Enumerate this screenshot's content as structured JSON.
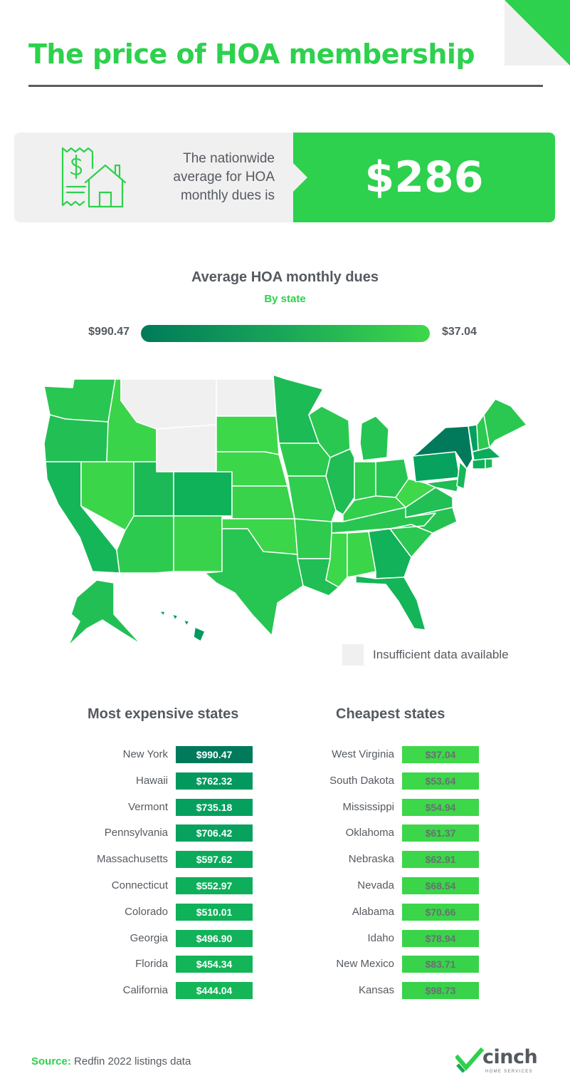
{
  "title": "The price of HOA membership",
  "headline": {
    "text": "The nationwide average for HOA monthly dues is",
    "value": "$286"
  },
  "map": {
    "title": "Average HOA monthly dues",
    "subtitle": "By state",
    "legend_max": "$990.47",
    "legend_min": "$37.04",
    "insufficient_label": "Insufficient data available"
  },
  "colors": {
    "brand_green": "#2dd14d",
    "dark_green": "#007a5a",
    "text_gray": "#555a60",
    "no_data": "#f0f0f0"
  },
  "expensive": {
    "title": "Most expensive states",
    "items": [
      {
        "state": "New York",
        "value": "$990.47",
        "color": "#007a5a"
      },
      {
        "state": "Hawaii",
        "value": "$762.32",
        "color": "#03995e"
      },
      {
        "state": "Vermont",
        "value": "$735.18",
        "color": "#05a05e"
      },
      {
        "state": "Pennsylvania",
        "value": "$706.42",
        "color": "#06a25e"
      },
      {
        "state": "Massachusetts",
        "value": "$597.62",
        "color": "#0bab5b"
      },
      {
        "state": "Connecticut",
        "value": "$552.97",
        "color": "#0eaf5a"
      },
      {
        "state": "Colorado",
        "value": "$510.01",
        "color": "#0fb159"
      },
      {
        "state": "Georgia",
        "value": "$496.90",
        "color": "#11b259"
      },
      {
        "state": "Florida",
        "value": "$454.34",
        "color": "#14b558"
      },
      {
        "state": "California",
        "value": "$444.04",
        "color": "#15b657"
      }
    ]
  },
  "cheapest": {
    "title": "Cheapest states",
    "items": [
      {
        "state": "West Virginia",
        "value": "$37.04",
        "color": "#3ed84a"
      },
      {
        "state": "South Dakota",
        "value": "$53.64",
        "color": "#3dd74a"
      },
      {
        "state": "Mississippi",
        "value": "$54.94",
        "color": "#3dd74a"
      },
      {
        "state": "Oklahoma",
        "value": "$61.37",
        "color": "#3cd64a"
      },
      {
        "state": "Nebraska",
        "value": "$62.91",
        "color": "#3cd64a"
      },
      {
        "state": "Nevada",
        "value": "$68.54",
        "color": "#3bd54a"
      },
      {
        "state": "Alabama",
        "value": "$70.66",
        "color": "#3bd54a"
      },
      {
        "state": "Idaho",
        "value": "$78.94",
        "color": "#3ad44a"
      },
      {
        "state": "New Mexico",
        "value": "$83.71",
        "color": "#39d34b"
      },
      {
        "state": "Kansas",
        "value": "$98.73",
        "color": "#38d24b"
      }
    ]
  },
  "footer": {
    "source_label": "Source:",
    "source_text": " Redfin 2022 listings data",
    "logo_text": "cinch",
    "logo_sub": "HOME SERVICES"
  }
}
